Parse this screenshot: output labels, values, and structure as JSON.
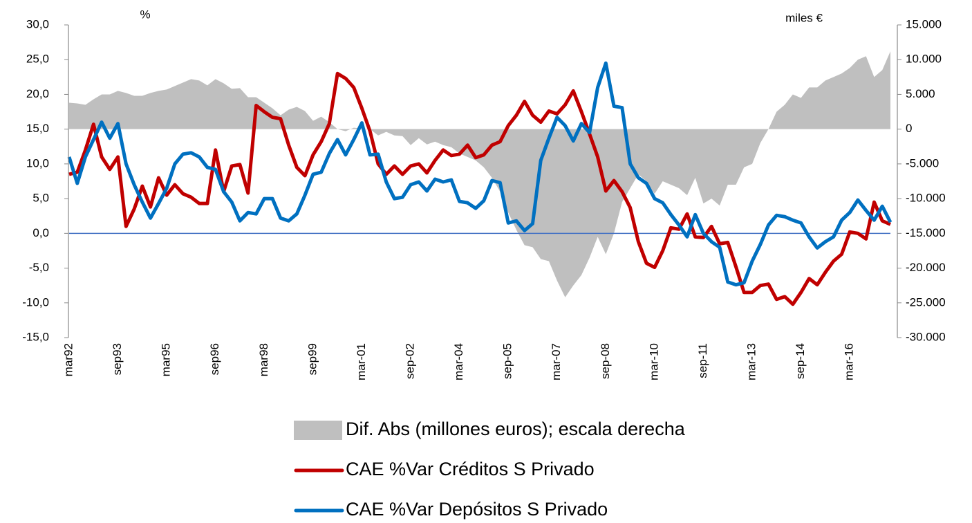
{
  "chart_data": {
    "type": "line",
    "y_label": "%",
    "y2_label": "miles €",
    "categories": [
      "mar92",
      null,
      null,
      null,
      null,
      null,
      "sep93",
      null,
      null,
      null,
      null,
      null,
      "mar95",
      null,
      null,
      null,
      null,
      null,
      "sep96",
      null,
      null,
      null,
      null,
      null,
      "mar98",
      null,
      null,
      null,
      null,
      null,
      "sep99",
      null,
      null,
      null,
      null,
      null,
      "mar-01",
      null,
      null,
      null,
      null,
      null,
      "sep-02",
      null,
      null,
      null,
      null,
      null,
      "mar-04",
      null,
      null,
      null,
      null,
      null,
      "sep-05",
      null,
      null,
      null,
      null,
      null,
      "mar-07",
      null,
      null,
      null,
      null,
      null,
      "sep-08",
      null,
      null,
      null,
      null,
      null,
      "mar-10",
      null,
      null,
      null,
      null,
      null,
      "sep-11",
      null,
      null,
      null,
      null,
      null,
      "mar-13",
      null,
      null,
      null,
      null,
      null,
      "sep-14",
      null,
      null,
      null,
      null,
      null,
      "mar-16",
      null,
      null,
      null,
      null,
      null
    ],
    "series": [
      {
        "name": "Dif. Abs (millones euros); escala derecha",
        "type": "area",
        "axis": "y2",
        "color": "#bfbfbf",
        "values": [
          3800,
          3700,
          3500,
          4300,
          5000,
          5000,
          5500,
          5200,
          4800,
          4800,
          5200,
          5500,
          5700,
          6200,
          6700,
          7200,
          7000,
          6300,
          7200,
          6600,
          5800,
          5900,
          4600,
          4600,
          3800,
          3000,
          2000,
          2800,
          3200,
          2600,
          1200,
          1800,
          1000,
          0,
          -300,
          200,
          100,
          0,
          -900,
          -400,
          -900,
          -1000,
          -2300,
          -1300,
          -2200,
          -1800,
          -2300,
          -2600,
          -3500,
          -4000,
          -4500,
          -5500,
          -7000,
          -9000,
          -12000,
          -14500,
          -16700,
          -17000,
          -18700,
          -19000,
          -21800,
          -24200,
          -22500,
          -21000,
          -18500,
          -15500,
          -18000,
          -15000,
          -10500,
          -8500,
          -6500,
          -7500,
          -9300,
          -7500,
          -8000,
          -8500,
          -9500,
          -7000,
          -10700,
          -10000,
          -11000,
          -8000,
          -8000,
          -5500,
          -5000,
          -2000,
          0,
          2500,
          3500,
          5000,
          4500,
          6000,
          6000,
          7000,
          7500,
          8000,
          8800,
          10000,
          10500,
          7500,
          8500,
          11200
        ]
      },
      {
        "name": "CAE %Var Créditos S Privado",
        "type": "line",
        "color": "#c00000",
        "values": [
          8.5,
          8.8,
          12,
          15.7,
          11,
          9.2,
          11,
          1,
          3.5,
          6.8,
          3.8,
          8,
          5.5,
          7,
          5.7,
          5.2,
          4.3,
          4.3,
          12,
          6,
          9.7,
          9.9,
          5.8,
          18.4,
          17.5,
          16.7,
          16.5,
          12.7,
          9.5,
          8.3,
          11.3,
          13.2,
          15.8,
          23,
          22.3,
          21,
          18,
          14.7,
          10,
          8.5,
          9.7,
          8.5,
          9.7,
          10,
          8.7,
          10.5,
          12,
          11.2,
          11.4,
          12.7,
          10.9,
          11.3,
          12.7,
          13.2,
          15.5,
          17,
          19,
          17,
          16,
          17.6,
          17.2,
          18.5,
          20.5,
          17.5,
          14.3,
          11,
          6.1,
          7.6,
          6,
          3.7,
          -1.2,
          -4.3,
          -4.9,
          -2.5,
          0.8,
          0.6,
          2.8,
          -0.5,
          -0.6,
          1,
          -1.5,
          -1.3,
          -4.8,
          -8.5,
          -8.5,
          -7.5,
          -7.3,
          -9.5,
          -9.1,
          -10.2,
          -8.5,
          -6.5,
          -7.4,
          -5.6,
          -4,
          -3,
          0.2,
          0,
          -0.8,
          4.5,
          1.8,
          1.3
        ]
      },
      {
        "name": "CAE %Var Depósitos S Privado",
        "type": "line",
        "color": "#0070c0",
        "values": [
          11,
          7.2,
          11,
          13.5,
          16,
          13.7,
          15.8,
          10,
          7,
          4.5,
          2.2,
          4.3,
          6.5,
          10,
          11.4,
          11.6,
          11,
          9.5,
          9.2,
          6,
          4.5,
          1.8,
          3,
          2.8,
          5,
          5,
          2.2,
          1.8,
          2.8,
          5.5,
          8.5,
          8.8,
          11.5,
          13.5,
          11.3,
          13.5,
          15.9,
          11.3,
          11.4,
          7.4,
          5,
          5.2,
          7,
          7.4,
          6.1,
          7.8,
          7.4,
          7.7,
          4.6,
          4.4,
          3.6,
          4.7,
          7.6,
          7.3,
          1.5,
          1.8,
          0.4,
          1.4,
          10.5,
          13.7,
          16.7,
          15.5,
          13.3,
          15.8,
          14.5,
          21,
          24.5,
          18.3,
          18.1,
          10,
          8,
          7.2,
          5,
          4.4,
          2.7,
          1.2,
          -0.5,
          2.7,
          0,
          -1.2,
          -2,
          -7,
          -7.4,
          -7.1,
          -4,
          -1.6,
          1.2,
          2.6,
          2.4,
          1.9,
          1.5,
          -0.5,
          -2.1,
          -1.2,
          -0.5,
          1.9,
          3,
          4.8,
          3.3,
          1.9,
          3.9,
          1.6
        ]
      }
    ],
    "ylim": [
      -15,
      30
    ],
    "yticks": [
      {
        "value": -15,
        "label": "-15,0"
      },
      {
        "value": -10,
        "label": "-10,0"
      },
      {
        "value": -5,
        "label": "-5,0"
      },
      {
        "value": 0,
        "label": "0,0"
      },
      {
        "value": 5,
        "label": "5,0"
      },
      {
        "value": 10,
        "label": "10,0"
      },
      {
        "value": 15,
        "label": "15,0"
      },
      {
        "value": 20,
        "label": "20,0"
      },
      {
        "value": 25,
        "label": "25,0"
      },
      {
        "value": 30,
        "label": "30,0"
      }
    ],
    "y2lim": [
      -30000,
      15000
    ],
    "y2ticks": [
      {
        "value": -30000,
        "label": "-30.000"
      },
      {
        "value": -25000,
        "label": "-25.000"
      },
      {
        "value": -20000,
        "label": "-20.000"
      },
      {
        "value": -15000,
        "label": "-15.000"
      },
      {
        "value": -10000,
        "label": "-10.000"
      },
      {
        "value": -5000,
        "label": "-5.000"
      },
      {
        "value": 0,
        "label": "0"
      },
      {
        "value": 5000,
        "label": "5.000"
      },
      {
        "value": 10000,
        "label": "10.000"
      },
      {
        "value": 15000,
        "label": "15.000"
      }
    ],
    "zero_line": true,
    "legend": "bottom"
  }
}
